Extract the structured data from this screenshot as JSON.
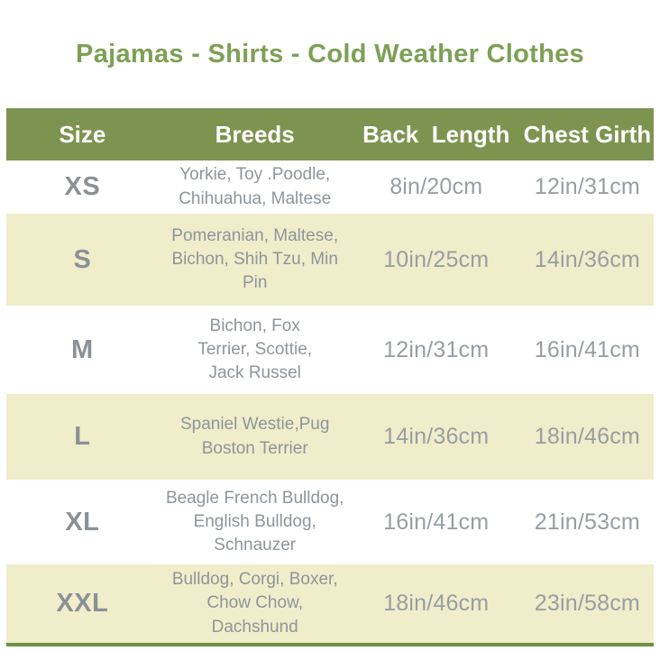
{
  "title": "Pajamas - Shirts - Cold Weather Clothes",
  "chart_data": {
    "type": "table",
    "title": "Pajamas - Shirts - Cold Weather Clothes",
    "columns": [
      "Size",
      "Breeds",
      "Back  Length",
      "Chest Girth"
    ],
    "rows": [
      {
        "size": "XS",
        "breeds": "Yorkie, Toy .Poodle,\nChihuahua, Maltese",
        "back_length": "8in/20cm",
        "chest_girth": "12in/31cm"
      },
      {
        "size": "S",
        "breeds": "Pomeranian, Maltese,\nBichon, Shih Tzu, Min Pin",
        "back_length": "10in/25cm",
        "chest_girth": "14in/36cm"
      },
      {
        "size": "M",
        "breeds": "Bichon, Fox\nTerrier, Scottie,\nJack Russel",
        "back_length": "12in/31cm",
        "chest_girth": "16in/41cm"
      },
      {
        "size": "L",
        "breeds": "Spaniel Westie,Pug\nBoston Terrier",
        "back_length": "14in/36cm",
        "chest_girth": "18in/46cm"
      },
      {
        "size": "XL",
        "breeds": "Beagle French Bulldog,\nEnglish Bulldog,\nSchnauzer",
        "back_length": "16in/41cm",
        "chest_girth": "21in/53cm"
      },
      {
        "size": "XXL",
        "breeds": "Bulldog, Corgi, Boxer,\nChow Chow,\nDachshund",
        "back_length": "18in/46cm",
        "chest_girth": "23in/58cm"
      }
    ]
  },
  "colors": {
    "title_text": "#7da055",
    "header_bg": "#7d9450",
    "header_text": "#ffffff",
    "row_alt_bg": "#f0edca",
    "size_text": "#8a9196",
    "breeds_text": "#8d959b",
    "measure_text": "#979ea3",
    "bottom_border": "#6e8f44"
  }
}
